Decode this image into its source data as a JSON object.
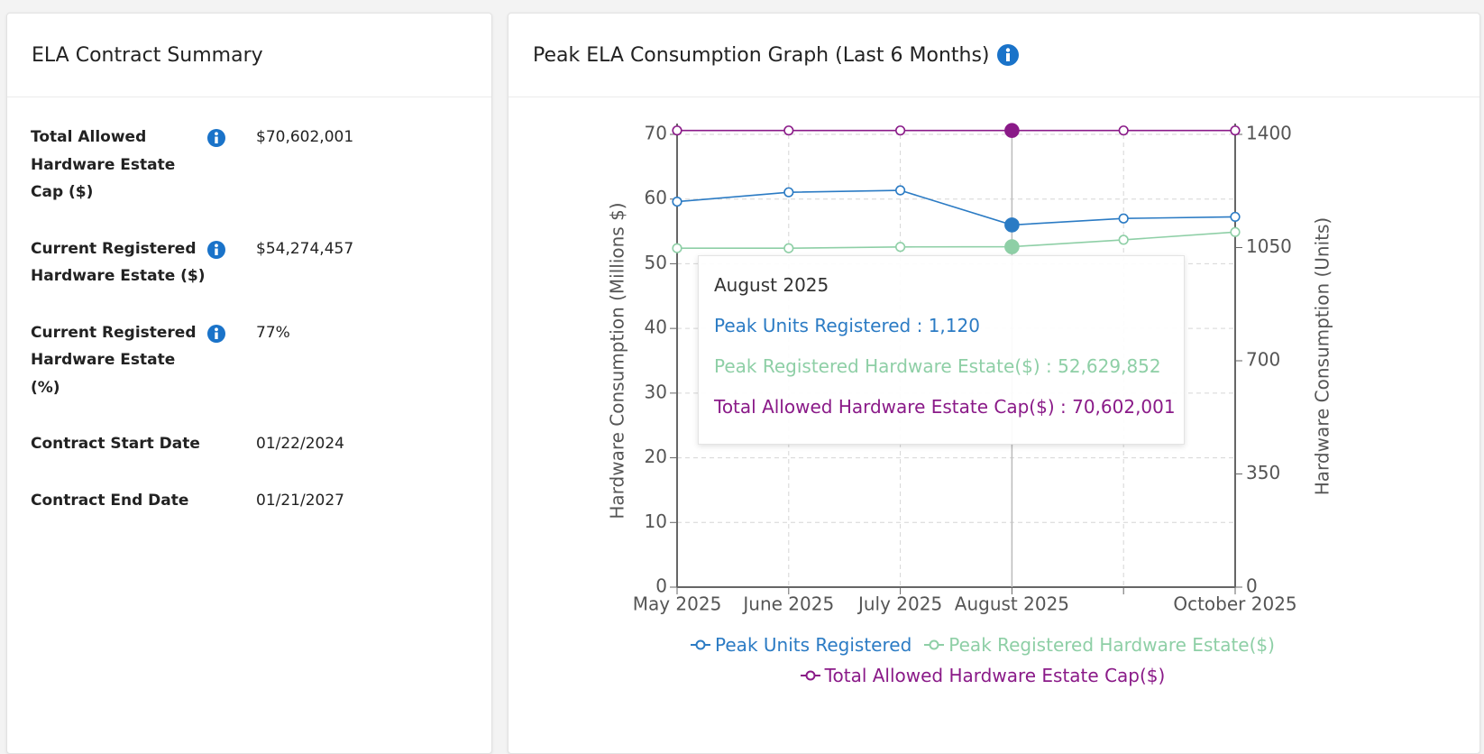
{
  "summary": {
    "title": "ELA Contract Summary",
    "rows": [
      {
        "label": "Total Allowed Hardware Estate Cap ($)",
        "value": "$70,602,001",
        "info": true
      },
      {
        "label": "Current Registered Hardware Estate ($)",
        "value": "$54,274,457",
        "info": true
      },
      {
        "label": "Current Registered Hardware Estate (%)",
        "value": "77%",
        "info": true
      },
      {
        "label": "Contract Start Date",
        "value": "01/22/2024",
        "info": false
      },
      {
        "label": "Contract End Date",
        "value": "01/21/2027",
        "info": false
      }
    ]
  },
  "chart_data": {
    "type": "line",
    "title": "Peak ELA Consumption Graph (Last 6 Months)",
    "categories": [
      "May 2025",
      "June 2025",
      "July 2025",
      "August 2025",
      null,
      "October 2025"
    ],
    "y_label": "Hardware Consumption (Millions $)",
    "y2_label": "Hardware Consumption (Units)",
    "ylim": [
      0,
      70
    ],
    "yticks": [
      0,
      10,
      20,
      30,
      40,
      50,
      60,
      70
    ],
    "y2lim": [
      0,
      1400
    ],
    "y2ticks": [
      0,
      350,
      700,
      1050,
      1400
    ],
    "grid": true,
    "series": [
      {
        "name": "Peak Units Registered",
        "color": "#2b7bc4",
        "axis": "y2",
        "values": [
          1192,
          1221,
          1227,
          1120,
          1140,
          1145
        ]
      },
      {
        "name": "Peak Registered Hardware Estate($)",
        "color": "#8ecfa6",
        "values": [
          52.4,
          52.4,
          52.6,
          52.629852,
          53.7,
          54.9
        ]
      },
      {
        "name": "Total Allowed Hardware Estate Cap($)",
        "color": "#8a1a88",
        "values": [
          70.602001,
          70.602001,
          70.602001,
          70.602001,
          70.602001,
          70.602001
        ]
      }
    ],
    "tooltip": {
      "title": "August 2025",
      "lines": [
        "Peak Units Registered : 1,120",
        "Peak Registered Hardware Estate($) : 52,629,852",
        "Total Allowed Hardware Estate Cap($) : 70,602,001"
      ]
    }
  }
}
